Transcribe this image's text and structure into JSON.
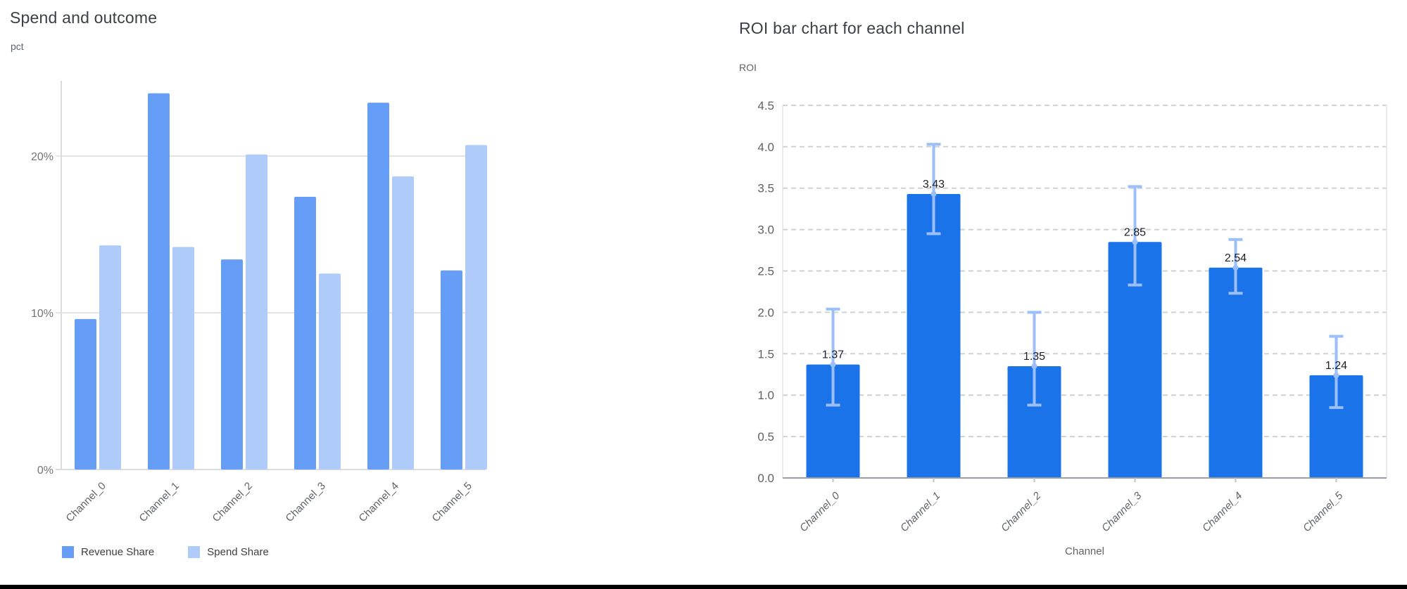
{
  "page": {
    "background": "#FFFFFF",
    "bottom_bar_color": "#000000"
  },
  "chart_data": [
    {
      "type": "bar",
      "title": "Spend and outcome",
      "ylabel": "pct",
      "xlabel": "",
      "categories": [
        "Channel_0",
        "Channel_1",
        "Channel_2",
        "Channel_3",
        "Channel_4",
        "Channel_5"
      ],
      "series": [
        {
          "name": "Revenue Share",
          "color": "#669DF6",
          "values": [
            9.6,
            24.0,
            13.4,
            17.4,
            23.4,
            12.7
          ]
        },
        {
          "name": "Spend Share",
          "color": "#AECBFA",
          "values": [
            14.3,
            14.2,
            20.1,
            12.5,
            18.7,
            20.7
          ]
        }
      ],
      "ytick_values": [
        0,
        10,
        20
      ],
      "ytick_labels": [
        "0%",
        "10%",
        "20%"
      ],
      "ylim": [
        0,
        24.8
      ],
      "grid": "solid",
      "legend_position": "bottom"
    },
    {
      "type": "bar",
      "title": "ROI bar chart for each channel",
      "ylabel": "ROI",
      "xlabel": "Channel",
      "categories": [
        "Channel_0",
        "Channel_1",
        "Channel_2",
        "Channel_3",
        "Channel_4",
        "Channel_5"
      ],
      "values": [
        1.37,
        3.43,
        1.35,
        2.85,
        2.54,
        1.24
      ],
      "bar_labels": [
        "1.37",
        "3.43",
        "1.35",
        "2.85",
        "2.54",
        "1.24"
      ],
      "error_low": [
        0.88,
        2.95,
        0.88,
        2.33,
        2.23,
        0.85
      ],
      "error_high": [
        2.04,
        4.03,
        2.0,
        3.52,
        2.88,
        1.71
      ],
      "bar_color": "#1A73E8",
      "error_bar_color": "#9DBFF9",
      "ytick_values": [
        0,
        0.5,
        1.0,
        1.5,
        2.0,
        2.5,
        3.0,
        3.5,
        4.0,
        4.5
      ],
      "ytick_labels": [
        "0.0",
        "0.5",
        "1.0",
        "1.5",
        "2.0",
        "2.5",
        "3.0",
        "3.5",
        "4.0",
        "4.5"
      ],
      "ylim": [
        0,
        4.5
      ],
      "grid": "dashed",
      "legend_position": "none"
    }
  ]
}
